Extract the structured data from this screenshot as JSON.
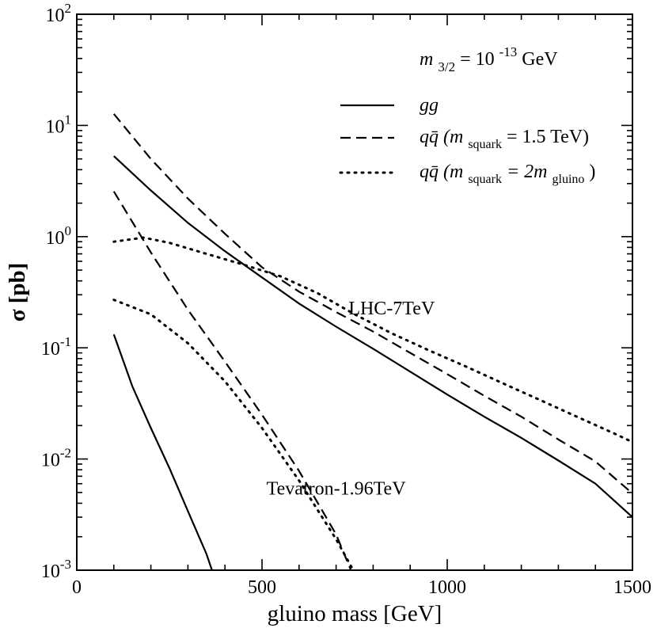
{
  "chart_data": {
    "type": "line",
    "title": "",
    "xlabel": "gluino mass [GeV]",
    "ylabel": "σ [pb]",
    "xlim": [
      0,
      1500
    ],
    "ylim": [
      0.001,
      100
    ],
    "yscale": "log",
    "x_ticks": [
      {
        "value": 0,
        "label": "0"
      },
      {
        "value": 500,
        "label": "500"
      },
      {
        "value": 1000,
        "label": "1000"
      },
      {
        "value": 1500,
        "label": "1500"
      }
    ],
    "y_ticks": [
      {
        "value": 0.001,
        "base": "10",
        "exp": "-3"
      },
      {
        "value": 0.01,
        "base": "10",
        "exp": "-2"
      },
      {
        "value": 0.1,
        "base": "10",
        "exp": "-1"
      },
      {
        "value": 1,
        "base": "10",
        "exp": "0"
      },
      {
        "value": 10,
        "base": "10",
        "exp": "1"
      },
      {
        "value": 100,
        "base": "10",
        "exp": "2"
      }
    ],
    "parameter": {
      "m": "m",
      "sub": "3/2",
      "eq": " = 10",
      "exp": "-13",
      "unit": " GeV"
    },
    "legend": {
      "position": "top-right",
      "entries": [
        {
          "style": "solid",
          "label": "gg"
        },
        {
          "style": "dashed",
          "label": "qq̄ (m",
          "sub": "squark",
          "rest": " = 1.5 TeV)"
        },
        {
          "style": "dotted",
          "label": "qq̄ (m",
          "sub": "squark",
          "rest": " = 2m",
          "sub2": "gluino",
          "rest2": ")"
        }
      ]
    },
    "annotations": [
      {
        "text": "LHC-7TeV",
        "at": [
          850,
          0.2
        ]
      },
      {
        "text": "Tevatron-1.96TeV",
        "at": [
          700,
          0.0048
        ]
      }
    ],
    "series": [
      {
        "name": "LHC-7TeV gg",
        "style": "solid",
        "x": [
          100,
          200,
          300,
          400,
          500,
          600,
          700,
          800,
          900,
          1000,
          1100,
          1200,
          1300,
          1400,
          1500
        ],
        "y": [
          5.3,
          2.6,
          1.33,
          0.74,
          0.43,
          0.25,
          0.155,
          0.098,
          0.061,
          0.038,
          0.024,
          0.0155,
          0.0097,
          0.006,
          0.003
        ]
      },
      {
        "name": "LHC-7TeV qq̄ (m_squark = 1.5 TeV)",
        "style": "dashed",
        "x": [
          100,
          200,
          300,
          400,
          500,
          600,
          700,
          800,
          900,
          1000,
          1100,
          1200,
          1300,
          1400,
          1500
        ],
        "y": [
          12.7,
          5.0,
          2.2,
          1.06,
          0.53,
          0.32,
          0.21,
          0.14,
          0.09,
          0.058,
          0.037,
          0.024,
          0.015,
          0.0095,
          0.0049
        ]
      },
      {
        "name": "LHC-7TeV qq̄ (m_squark = 2m_gluino)",
        "style": "dotted",
        "x": [
          100,
          180,
          250,
          350,
          450,
          550,
          650,
          750,
          850,
          950,
          1050,
          1150,
          1250,
          1350,
          1450,
          1500
        ],
        "y": [
          0.9,
          0.98,
          0.88,
          0.7,
          0.56,
          0.44,
          0.31,
          0.2,
          0.135,
          0.095,
          0.068,
          0.048,
          0.034,
          0.024,
          0.017,
          0.0142
        ]
      },
      {
        "name": "Tevatron-1.96TeV gg",
        "style": "solid",
        "x": [
          100,
          150,
          200,
          250,
          300,
          350,
          365
        ],
        "y": [
          0.132,
          0.045,
          0.019,
          0.0083,
          0.0034,
          0.0014,
          0.001
        ]
      },
      {
        "name": "Tevatron-1.96TeV qq̄ (m_squark = 1.5 TeV)",
        "style": "dashed",
        "x": [
          100,
          200,
          300,
          400,
          500,
          600,
          700,
          740
        ],
        "y": [
          2.55,
          0.72,
          0.22,
          0.075,
          0.025,
          0.0078,
          0.0021,
          0.001
        ]
      },
      {
        "name": "Tevatron-1.96TeV qq̄ (m_squark = 2m_gluino)",
        "style": "dotted",
        "x": [
          100,
          200,
          300,
          400,
          500,
          600,
          700,
          750
        ],
        "y": [
          0.27,
          0.2,
          0.11,
          0.05,
          0.019,
          0.0064,
          0.0019,
          0.00095
        ]
      }
    ]
  }
}
